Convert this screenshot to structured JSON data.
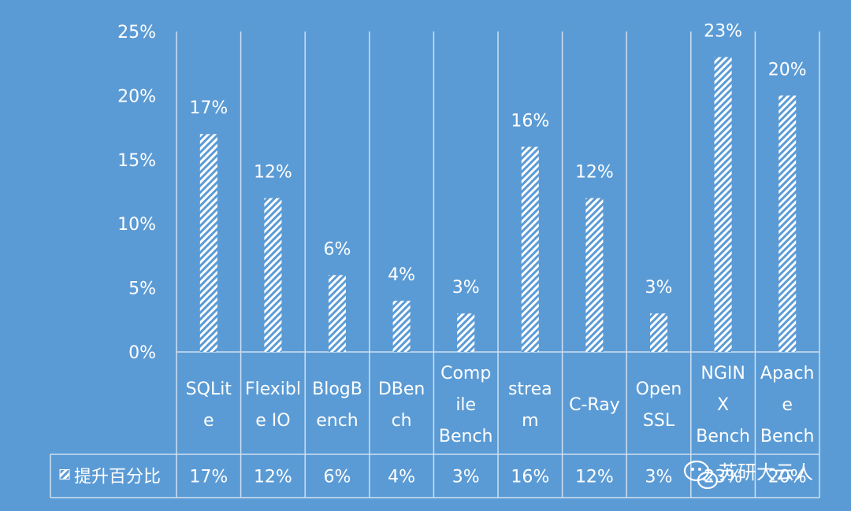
{
  "chart_data": {
    "type": "bar",
    "categories": [
      [
        "SQLit",
        "e"
      ],
      [
        "Flexibl",
        "e IO"
      ],
      [
        "BlogB",
        "ench"
      ],
      [
        "DBen",
        "ch"
      ],
      [
        "Comp",
        "ile",
        "Bench"
      ],
      [
        "strea",
        "m"
      ],
      [
        "C-Ray"
      ],
      [
        "Open",
        "SSL"
      ],
      [
        "NGIN",
        "X",
        "Bench"
      ],
      [
        "Apach",
        "e",
        "Bench"
      ]
    ],
    "series": [
      {
        "name": "提升百分比",
        "values": [
          17,
          12,
          6,
          4,
          3,
          16,
          12,
          3,
          23,
          20
        ],
        "labels": [
          "17%",
          "12%",
          "6%",
          "4%",
          "3%",
          "16%",
          "12%",
          "3%",
          "23%",
          "20%"
        ]
      }
    ],
    "y_ticks": [
      "0%",
      "5%",
      "10%",
      "15%",
      "20%",
      "25%"
    ],
    "ylim": [
      0,
      25
    ],
    "data_table": true,
    "grid": false,
    "colors": {
      "background": "#5b9bd5",
      "bar": "#ffffff",
      "text": "#ffffff"
    }
  },
  "watermark": {
    "text": "苏研大云人",
    "icon": "wechat-icon"
  }
}
